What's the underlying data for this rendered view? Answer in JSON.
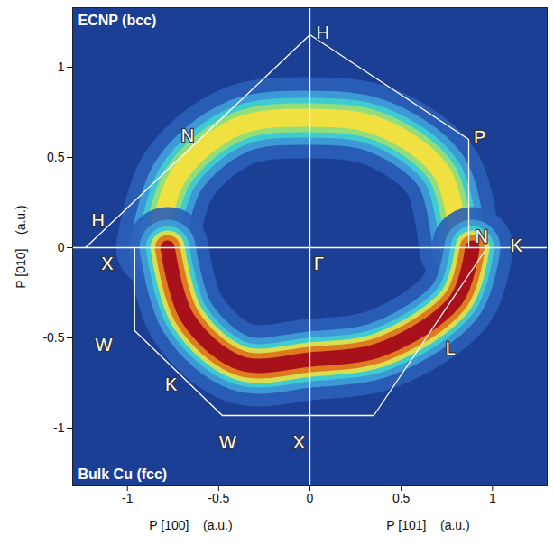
{
  "chart_data": {
    "type": "contour",
    "ylabel": "P [010]    (a.u.)",
    "xlabels": [
      "P [100]    (a.u.)",
      "P [101]    (a.u.)"
    ],
    "xlim": [
      -1.3,
      1.3
    ],
    "ylim": [
      -1.32,
      1.33
    ],
    "xticks": [
      -1,
      -0.5,
      0,
      0.5,
      1
    ],
    "yticks": [
      -1,
      -0.5,
      0,
      0.5,
      1
    ],
    "series": [
      {
        "name": "ECNP (bcc)",
        "color": "#f0e040",
        "x": [
          0.82,
          0.72,
          0.38,
          0,
          -0.4,
          -0.72,
          -0.84
        ],
        "y": [
          0,
          0.42,
          0.67,
          0.72,
          0.67,
          0.4,
          0
        ]
      },
      {
        "name": "Bulk Cu (fcc)",
        "color": "#a8101a",
        "x": [
          -0.78,
          -0.67,
          -0.38,
          0,
          0.4,
          0.8,
          0.89
        ],
        "y": [
          0,
          -0.39,
          -0.64,
          -0.62,
          -0.56,
          -0.29,
          0
        ]
      }
    ],
    "zone_boundaries": [
      {
        "x": [
          -1.23,
          0,
          0.87,
          0.87
        ],
        "y": [
          0,
          1.18,
          0.6,
          0
        ]
      },
      {
        "x": [
          -0.96,
          -0.96,
          -0.48,
          0.35,
          0.97
        ],
        "y": [
          0,
          -0.46,
          -0.93,
          -0.93,
          0
        ]
      },
      {
        "x": [
          0,
          0
        ],
        "y": [
          -1.32,
          1.33
        ]
      },
      {
        "x": [
          -1.3,
          1.3
        ],
        "y": [
          0,
          0
        ]
      }
    ],
    "points": [
      {
        "label": "H",
        "x": -1.16,
        "y": 0.15
      },
      {
        "label": "N",
        "x": -0.67,
        "y": 0.62
      },
      {
        "label": "H",
        "x": 0.07,
        "y": 1.19
      },
      {
        "label": "P",
        "x": 0.93,
        "y": 0.61
      },
      {
        "label": "N",
        "x": 0.94,
        "y": 0.06
      },
      {
        "label": "K",
        "x": 1.13,
        "y": 0.01
      },
      {
        "label": "X",
        "x": -1.11,
        "y": -0.09
      },
      {
        "label": "Γ",
        "x": 0.05,
        "y": -0.09
      },
      {
        "label": "W",
        "x": -1.13,
        "y": -0.54
      },
      {
        "label": "K",
        "x": -0.76,
        "y": -0.76
      },
      {
        "label": "W",
        "x": -0.45,
        "y": -1.08
      },
      {
        "label": "X",
        "x": -0.06,
        "y": -1.08
      },
      {
        "label": "L",
        "x": 0.77,
        "y": -0.56
      }
    ]
  }
}
